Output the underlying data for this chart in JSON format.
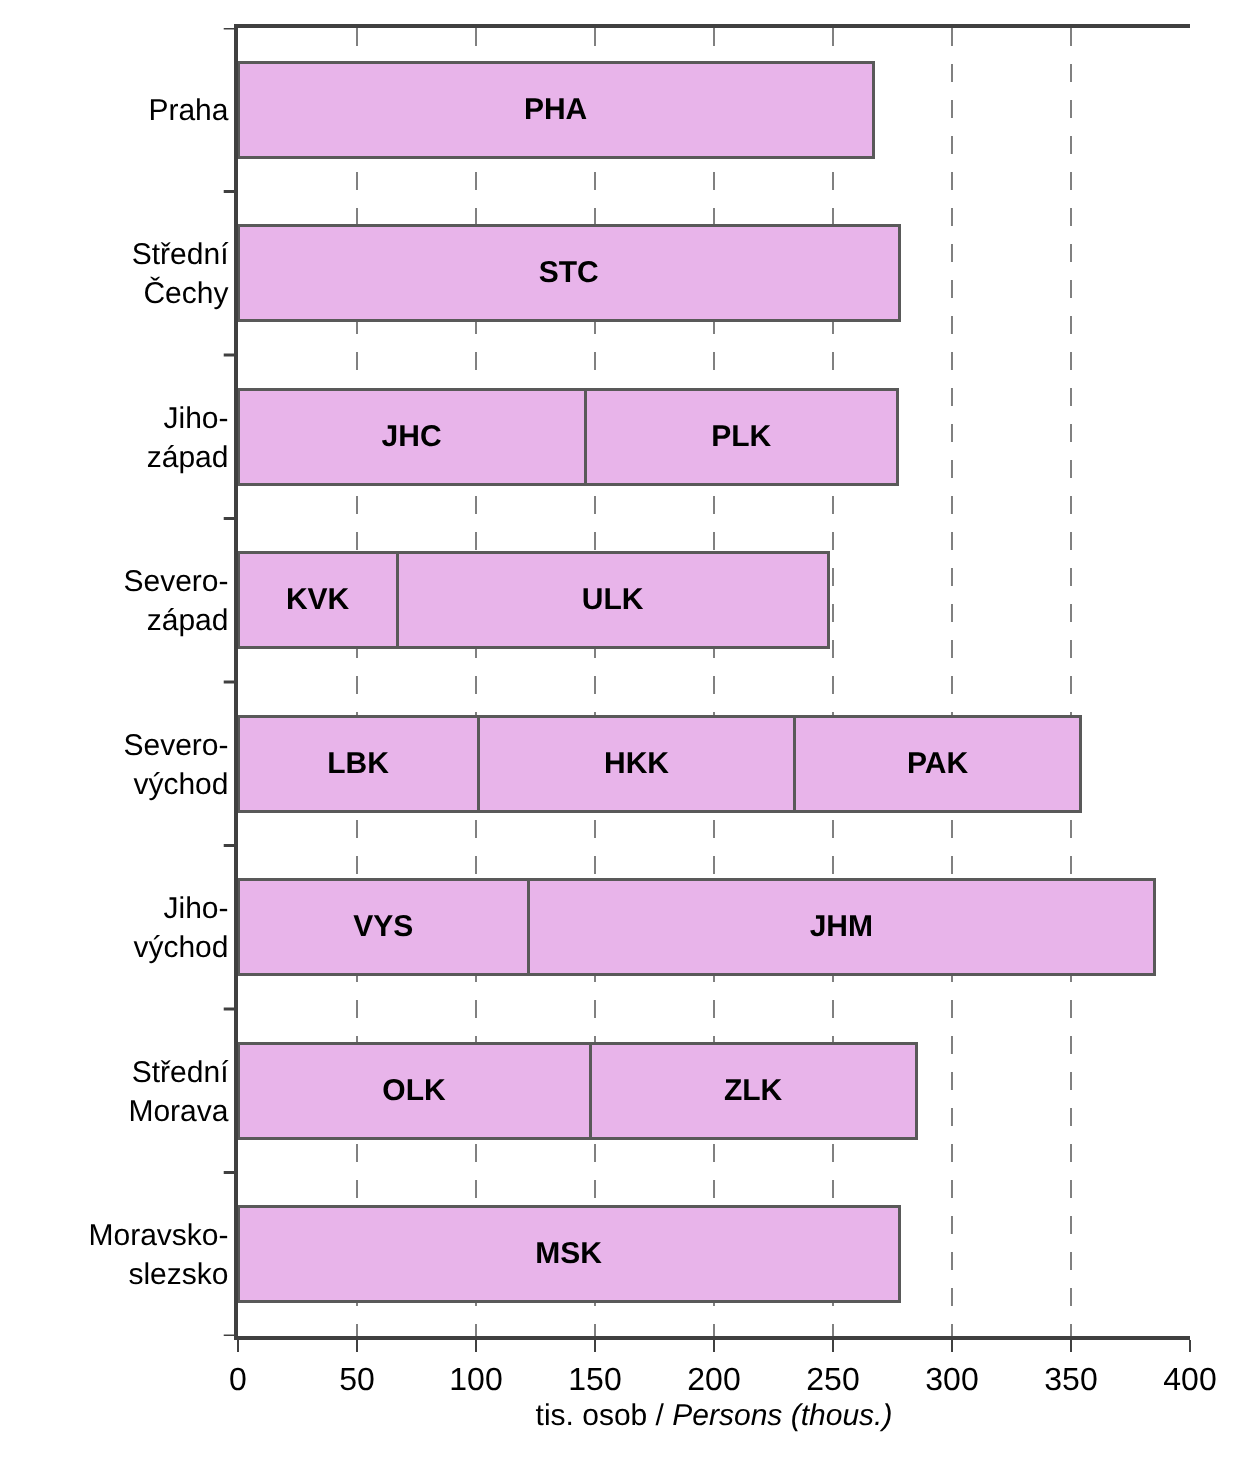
{
  "chart_data": {
    "type": "bar",
    "orientation": "horizontal",
    "stacked": true,
    "categories": [
      "Praha",
      "Střední\nČechy",
      "Jiho-\nzápad",
      "Severo-\nzápad",
      "Severo-\nvýchod",
      "Jiho-\nvýchod",
      "Střední\nMorava",
      "Moravsko-\nslezsko"
    ],
    "series": [
      {
        "color": "#e8b4ea",
        "values": [
          267,
          278,
          146,
          67,
          101,
          122,
          148,
          278
        ],
        "value_labels": [
          "PHA",
          "STC",
          "JHC",
          "KVK",
          "LBK",
          "VYS",
          "OLK",
          "MSK"
        ]
      },
      {
        "color": "#e8b4ea",
        "values": [
          null,
          null,
          131,
          181,
          133,
          263,
          137,
          null
        ],
        "value_labels": [
          null,
          null,
          "PLK",
          "ULK",
          "HKK",
          "JHM",
          "ZLK",
          null
        ]
      },
      {
        "color": "#e8b4ea",
        "values": [
          null,
          null,
          null,
          null,
          120,
          null,
          null,
          null
        ],
        "value_labels": [
          null,
          null,
          null,
          null,
          "PAK",
          null,
          null,
          null
        ]
      }
    ],
    "xlabel": "tis. osob / Persons (thous.)",
    "xlim": [
      0,
      400
    ],
    "xticks": [
      0,
      50,
      100,
      150,
      200,
      250,
      300,
      350,
      400
    ],
    "grid": "x"
  }
}
